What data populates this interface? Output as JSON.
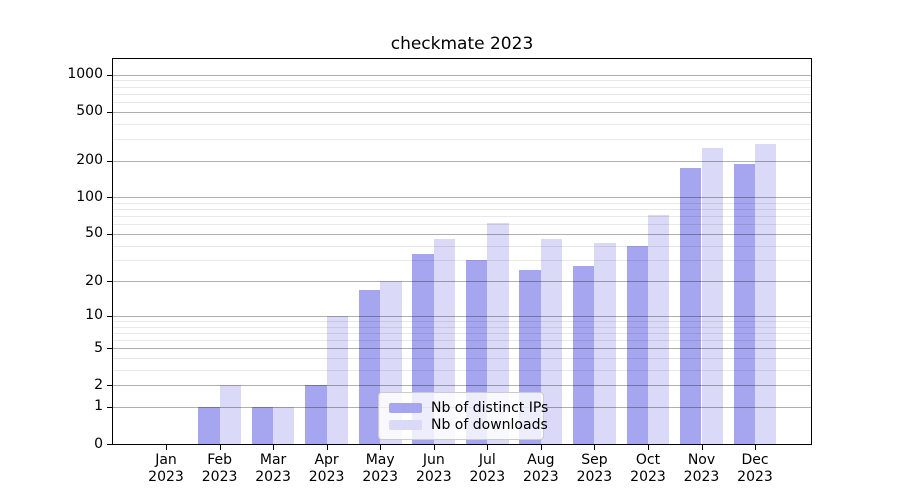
{
  "title": "checkmate 2023",
  "colors": {
    "ips": "#a5a5f0",
    "downloads": "#dadaf8",
    "axis": "#000000",
    "grid_major": "#b0b0b0",
    "grid_minor": "#e8e8e8",
    "legend_border": "#cccccc"
  },
  "legend": {
    "items": [
      {
        "label": "Nb of distinct IPs",
        "color_key": "ips"
      },
      {
        "label": "Nb of downloads",
        "color_key": "downloads"
      }
    ],
    "position": "lower center"
  },
  "chart_data": {
    "type": "bar",
    "title": "checkmate 2023",
    "xlabel": "",
    "ylabel": "",
    "yscale": "log1p (symlog-like: y ~ log10(1+v))",
    "ylim": [
      0,
      1350
    ],
    "grid": "both (major and minor), drawn above bars",
    "legend_position": "lower center inside plot",
    "categories": [
      "Jan\n2023",
      "Feb\n2023",
      "Mar\n2023",
      "Apr\n2023",
      "May\n2023",
      "Jun\n2023",
      "Jul\n2023",
      "Aug\n2023",
      "Sep\n2023",
      "Oct\n2023",
      "Nov\n2023",
      "Dec\n2023"
    ],
    "series": [
      {
        "name": "Nb of distinct IPs",
        "color_key": "ips",
        "values": [
          0,
          1,
          1,
          2,
          17,
          34,
          30,
          25,
          27,
          40,
          175,
          188
        ]
      },
      {
        "name": "Nb of downloads",
        "color_key": "downloads",
        "values": [
          0,
          2,
          1,
          10,
          20,
          45,
          61,
          45,
          42,
          72,
          255,
          275
        ]
      }
    ],
    "ytick_labels": [
      "0",
      "1",
      "2",
      "5",
      "10",
      "20",
      "50",
      "100",
      "200",
      "500",
      "1000"
    ],
    "yticks_major": [
      0,
      1,
      2,
      5,
      10,
      20,
      50,
      100,
      200,
      500,
      1000
    ],
    "yticks_minor": [
      3,
      4,
      6,
      7,
      8,
      9,
      30,
      40,
      60,
      70,
      80,
      90,
      300,
      400,
      600,
      700,
      800,
      900
    ]
  }
}
